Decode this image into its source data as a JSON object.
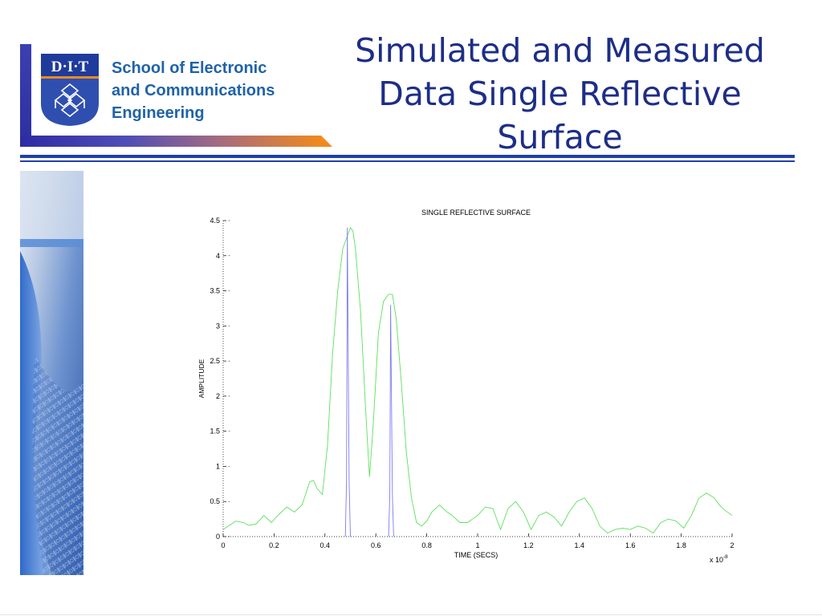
{
  "logo": {
    "crest_text": "D·I·T",
    "school_lines": [
      "School of Electronic",
      "and Communications",
      "Engineering"
    ],
    "colors": {
      "crest_top": "#1f3b9b",
      "school_text": "#1f63a8",
      "accent_orange": "#f08a1e",
      "accent_blue": "#2e2ba3"
    }
  },
  "page": {
    "title_lines": [
      "Simulated and Measured",
      "Data Single Reflective",
      "Surface"
    ],
    "title_color": "#1d2e87",
    "rule_color": "#1f3fa8"
  },
  "chart_data": {
    "type": "line",
    "title": "SINGLE REFLECTIVE SURFACE",
    "xlabel": "TIME (SECS)",
    "ylabel": "AMPLITUDE",
    "x_multiplier": "x 10",
    "x_multiplier_exp": "-8",
    "xlim": [
      0,
      2
    ],
    "ylim": [
      0,
      4.5
    ],
    "xticks": [
      0,
      0.2,
      0.4,
      0.6,
      0.8,
      1,
      1.2,
      1.4,
      1.6,
      1.8,
      2
    ],
    "xtick_labels": [
      "0",
      "0.2",
      "0.4",
      "0.6",
      "0.8",
      "1",
      "1.2",
      "1.4",
      "1.6",
      "1.8",
      "2"
    ],
    "yticks": [
      0,
      0.5,
      1,
      1.5,
      2,
      2.5,
      3,
      3.5,
      4,
      4.5
    ],
    "ytick_labels": [
      "0",
      "0.5",
      "1",
      "1.5",
      "2",
      "2.5",
      "3",
      "3.5",
      "4",
      "4.5"
    ],
    "grid": false,
    "series": [
      {
        "color": "#5de05d",
        "x": [
          0,
          0.02,
          0.05,
          0.08,
          0.1,
          0.13,
          0.16,
          0.19,
          0.22,
          0.25,
          0.28,
          0.31,
          0.34,
          0.355,
          0.37,
          0.39,
          0.41,
          0.43,
          0.45,
          0.47,
          0.49,
          0.5,
          0.51,
          0.52,
          0.54,
          0.56,
          0.575,
          0.59,
          0.61,
          0.63,
          0.65,
          0.665,
          0.68,
          0.7,
          0.72,
          0.74,
          0.76,
          0.78,
          0.8,
          0.82,
          0.85,
          0.88,
          0.9,
          0.93,
          0.96,
          1.0,
          1.03,
          1.06,
          1.09,
          1.12,
          1.15,
          1.18,
          1.21,
          1.24,
          1.27,
          1.3,
          1.33,
          1.36,
          1.39,
          1.42,
          1.45,
          1.48,
          1.51,
          1.54,
          1.57,
          1.6,
          1.63,
          1.66,
          1.69,
          1.72,
          1.75,
          1.78,
          1.81,
          1.84,
          1.87,
          1.9,
          1.93,
          1.95,
          1.97,
          2.0
        ],
        "y": [
          0.1,
          0.15,
          0.22,
          0.2,
          0.16,
          0.18,
          0.3,
          0.2,
          0.32,
          0.42,
          0.35,
          0.45,
          0.78,
          0.8,
          0.68,
          0.6,
          1.3,
          2.6,
          3.5,
          4.1,
          4.3,
          4.4,
          4.35,
          4.1,
          3.2,
          1.8,
          0.85,
          1.6,
          2.9,
          3.35,
          3.45,
          3.45,
          3.1,
          2.2,
          1.2,
          0.55,
          0.2,
          0.15,
          0.22,
          0.35,
          0.45,
          0.35,
          0.3,
          0.2,
          0.2,
          0.3,
          0.42,
          0.4,
          0.1,
          0.4,
          0.5,
          0.35,
          0.1,
          0.3,
          0.35,
          0.28,
          0.15,
          0.35,
          0.5,
          0.55,
          0.4,
          0.15,
          0.05,
          0.1,
          0.12,
          0.1,
          0.15,
          0.12,
          0.05,
          0.2,
          0.25,
          0.22,
          0.12,
          0.3,
          0.55,
          0.62,
          0.55,
          0.45,
          0.38,
          0.3
        ]
      },
      {
        "color": "#7b7bf2",
        "x": [
          0.48,
          0.485,
          0.488,
          0.495,
          0.5
        ],
        "y": [
          0,
          0.8,
          4.4,
          0.8,
          0
        ]
      },
      {
        "color": "#7b7bf2",
        "x": [
          0.65,
          0.655,
          0.658,
          0.665,
          0.67
        ],
        "y": [
          0,
          0.6,
          3.3,
          0.6,
          0
        ]
      }
    ]
  }
}
